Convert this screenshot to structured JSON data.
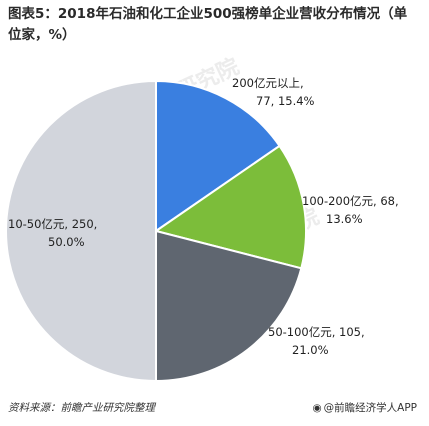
{
  "title": "图表5：2018年石油和化工企业500强榜单企业营收分布情况（单位家，%）",
  "source": "资料来源：前瞻产业研究院整理",
  "brand": "@前瞻经济学人APP",
  "watermarks": [
    "前瞻产业研究院",
    "前瞻产业研究院",
    "前瞻产业研究院"
  ],
  "chart_data": {
    "type": "pie",
    "title": "图表5：2018年石油和化工企业500强榜单企业营收分布情况（单位家，%）",
    "unit": "家，%",
    "start_angle_deg": 90,
    "direction": "clockwise",
    "slices": [
      {
        "label": "200亿元以上",
        "value": 77,
        "percent": "15.4%",
        "color": "#3a7fe0",
        "text_lines": [
          "200亿元以上,",
          "77, 15.4%"
        ]
      },
      {
        "label": "100-200亿元",
        "value": 68,
        "percent": "13.6%",
        "color": "#7cbd3a",
        "text_lines": [
          "100-200亿元, 68,",
          "13.6%"
        ]
      },
      {
        "label": "50-100亿元",
        "value": 105,
        "percent": "21.0%",
        "color": "#5f6670",
        "text_lines": [
          "50-100亿元, 105,",
          "21.0%"
        ]
      },
      {
        "label": "10-50亿元",
        "value": 250,
        "percent": "50.0%",
        "color": "#d2d5dc",
        "text_lines": [
          "10-50亿元, 250,",
          "50.0%"
        ]
      }
    ]
  }
}
